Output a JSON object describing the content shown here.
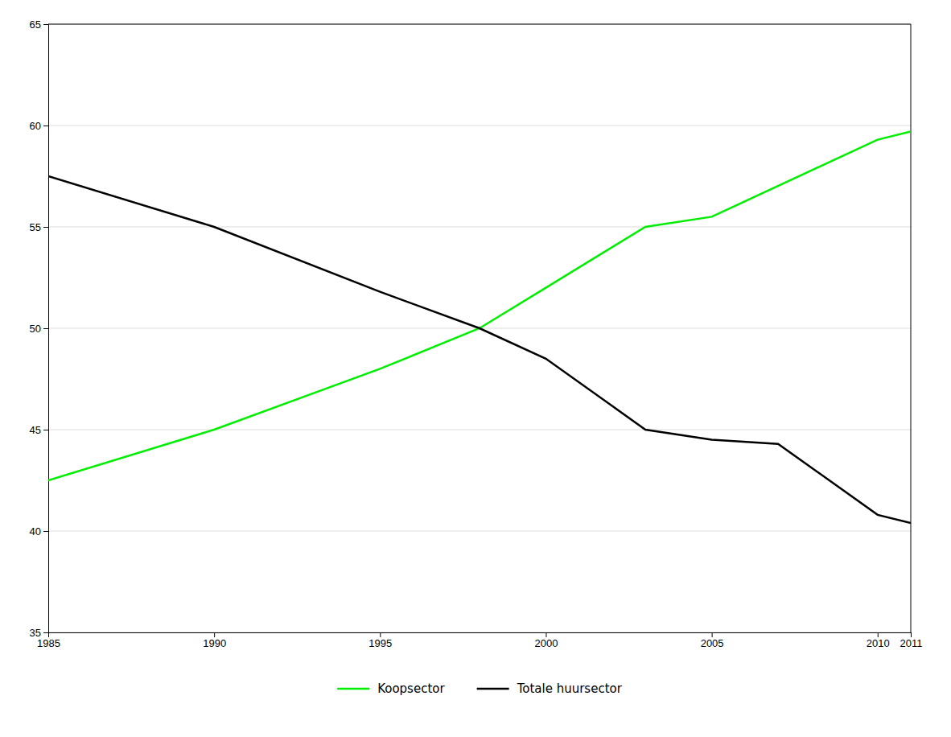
{
  "chart_data": {
    "type": "line",
    "series": [
      {
        "name": "Koopsector",
        "color": "#00ee00",
        "x": [
          1985,
          1990,
          1995,
          1998,
          2000,
          2003,
          2005,
          2010,
          2011
        ],
        "values": [
          42.5,
          45.0,
          48.0,
          50.0,
          52.0,
          55.0,
          55.5,
          59.3,
          59.7
        ]
      },
      {
        "name": "Totale huursector",
        "color": "#000000",
        "x": [
          1985,
          1990,
          1995,
          1998,
          2000,
          2003,
          2005,
          2007,
          2010,
          2011
        ],
        "values": [
          57.5,
          55.0,
          51.8,
          50.0,
          48.5,
          45.0,
          44.5,
          44.3,
          40.8,
          40.4
        ]
      }
    ],
    "xlim": [
      1985,
      2011
    ],
    "xticks": [
      1985,
      1990,
      1995,
      2000,
      2005,
      2010,
      2011
    ],
    "ylim": [
      35,
      65
    ],
    "yticks": [
      35,
      40,
      45,
      50,
      55,
      60,
      65
    ],
    "grid": true,
    "legend": "bottom"
  }
}
